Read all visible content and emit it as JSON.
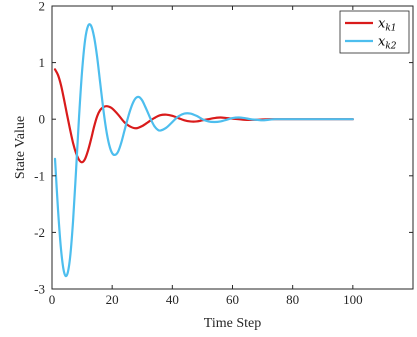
{
  "chart_data": {
    "type": "line",
    "xlabel": "Time Step",
    "ylabel": "State Value",
    "xlim": [
      0,
      120
    ],
    "ylim": [
      -3,
      2
    ],
    "xticks": [
      0,
      20,
      40,
      60,
      80,
      100
    ],
    "yticks": [
      -3,
      -2,
      -1,
      0,
      1,
      2
    ],
    "grid": false,
    "legend_position": "top-right",
    "series": [
      {
        "name": "x_{k1}",
        "legend_main": "x",
        "legend_sub": "k1",
        "color": "#d91b1b",
        "x": [
          1,
          2,
          3,
          4,
          5,
          6,
          7,
          8,
          9,
          10,
          11,
          12,
          13,
          14,
          15,
          16,
          17,
          18,
          19,
          20,
          22,
          24,
          26,
          28,
          30,
          32,
          34,
          36,
          38,
          40,
          42,
          44,
          46,
          48,
          50,
          52,
          54,
          56,
          58,
          60,
          64,
          68,
          72,
          76,
          80,
          85,
          90,
          95,
          100
        ],
        "y": [
          0.88,
          0.78,
          0.6,
          0.35,
          0.08,
          -0.18,
          -0.42,
          -0.6,
          -0.72,
          -0.76,
          -0.7,
          -0.55,
          -0.35,
          -0.13,
          0.05,
          0.16,
          0.21,
          0.23,
          0.22,
          0.19,
          0.08,
          -0.05,
          -0.13,
          -0.16,
          -0.12,
          -0.05,
          0.02,
          0.07,
          0.08,
          0.06,
          0.02,
          -0.02,
          -0.04,
          -0.04,
          -0.02,
          0.0,
          0.02,
          0.03,
          0.02,
          0.01,
          -0.01,
          -0.01,
          0.0,
          0.0,
          0.0,
          0.0,
          0.0,
          0.0,
          0.0
        ]
      },
      {
        "name": "x_{k2}",
        "legend_main": "x",
        "legend_sub": "k2",
        "color": "#4dbeee",
        "x": [
          1,
          2,
          3,
          4,
          5,
          6,
          7,
          8,
          9,
          10,
          11,
          12,
          13,
          14,
          15,
          16,
          17,
          18,
          19,
          20,
          21,
          22,
          23,
          24,
          25,
          26,
          27,
          28,
          29,
          30,
          31,
          32,
          33,
          34,
          35,
          36,
          38,
          40,
          42,
          44,
          46,
          48,
          50,
          52,
          54,
          56,
          58,
          60,
          62,
          64,
          66,
          68,
          70,
          72,
          74,
          76,
          80,
          85,
          90,
          95,
          100
        ],
        "y": [
          -0.7,
          -1.6,
          -2.3,
          -2.7,
          -2.75,
          -2.45,
          -1.8,
          -0.9,
          0.05,
          0.85,
          1.4,
          1.65,
          1.65,
          1.45,
          1.1,
          0.65,
          0.2,
          -0.18,
          -0.45,
          -0.6,
          -0.63,
          -0.57,
          -0.42,
          -0.22,
          -0.02,
          0.16,
          0.3,
          0.38,
          0.39,
          0.33,
          0.22,
          0.1,
          -0.02,
          -0.12,
          -0.18,
          -0.2,
          -0.15,
          -0.05,
          0.05,
          0.1,
          0.1,
          0.06,
          0.0,
          -0.04,
          -0.05,
          -0.04,
          -0.01,
          0.02,
          0.03,
          0.02,
          0.0,
          -0.01,
          -0.02,
          -0.01,
          0.0,
          0.0,
          0.0,
          0.0,
          0.0,
          0.0,
          0.0
        ]
      }
    ]
  }
}
